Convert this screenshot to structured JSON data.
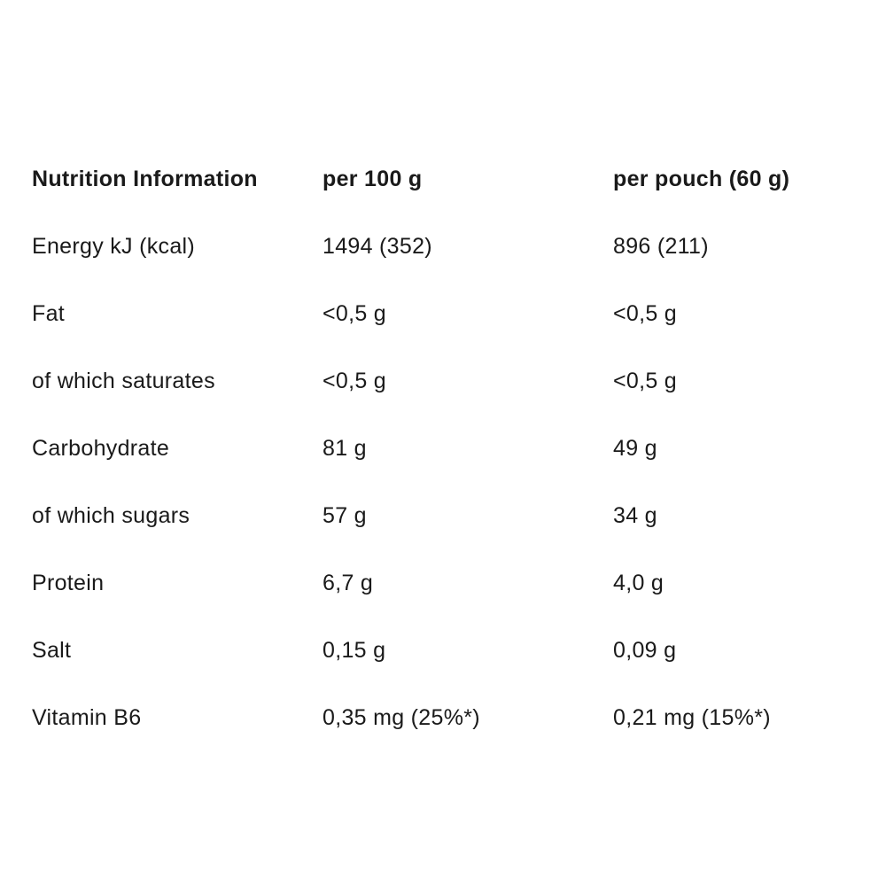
{
  "table": {
    "header": {
      "label": "Nutrition Information",
      "col_per_100g": "per 100 g",
      "col_per_pouch": "per pouch (60 g)"
    },
    "rows": [
      {
        "label": "Energy kJ (kcal)",
        "per_100g": "1494 (352)",
        "per_pouch": "896 (211)"
      },
      {
        "label": "Fat",
        "per_100g": "<0,5 g",
        "per_pouch": "<0,5 g"
      },
      {
        "label": "of which saturates",
        "per_100g": "<0,5 g",
        "per_pouch": "<0,5 g"
      },
      {
        "label": "Carbohydrate",
        "per_100g": "81 g",
        "per_pouch": "49 g"
      },
      {
        "label": "of which sugars",
        "per_100g": "57 g",
        "per_pouch": "34 g"
      },
      {
        "label": "Protein",
        "per_100g": "6,7 g",
        "per_pouch": "4,0 g"
      },
      {
        "label": "Salt",
        "per_100g": "0,15 g",
        "per_pouch": "0,09 g"
      },
      {
        "label": "Vitamin B6",
        "per_100g": "0,35 mg (25%*)",
        "per_pouch": "0,21 mg (15%*)"
      }
    ]
  }
}
